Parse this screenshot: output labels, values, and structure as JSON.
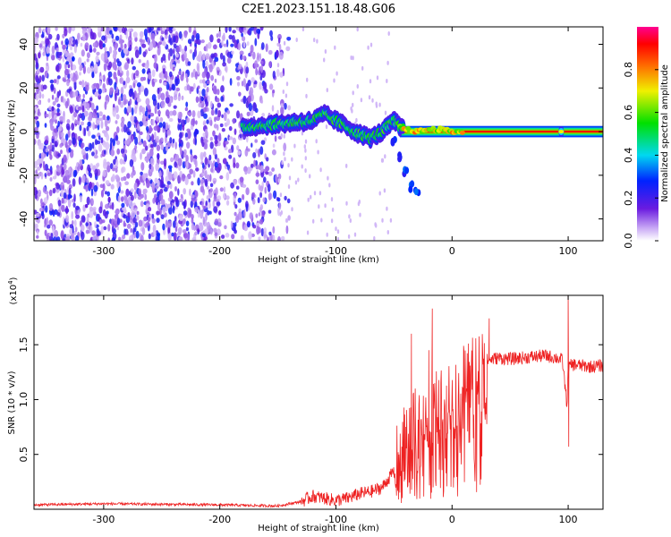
{
  "title": "C2E1.2023.151.18.48.G06",
  "colors": {
    "snr_line": "#ee2222",
    "spectrogram_scatter": "#7b2cf0",
    "spectrogram_track_core": "#e80000"
  },
  "colorbar": {
    "label": "Normalized spectral amplitude",
    "range": [
      0,
      1
    ],
    "ticks": [
      {
        "value": 0.0,
        "label": "0.0"
      },
      {
        "value": 0.2,
        "label": "0.2"
      },
      {
        "value": 0.4,
        "label": "0.4"
      },
      {
        "value": 0.6,
        "label": "0.6"
      },
      {
        "value": 0.8,
        "label": "0.8"
      }
    ],
    "colormap": "rainbow (white-violet-blue-cyan-green-yellow-red-magenta)"
  },
  "chart_data": [
    {
      "type": "heatmap",
      "title": "C2E1.2023.151.18.48.G06",
      "xlabel": "Height of straight line (km)",
      "ylabel": "Frequency (Hz)",
      "xlim": [
        -360,
        130
      ],
      "ylim": [
        -50,
        48
      ],
      "xticks": [
        -300,
        -200,
        -100,
        0,
        100
      ],
      "xtick_labels": [
        "-300",
        "-200",
        "-100",
        "0",
        "100"
      ],
      "yticks": [
        -40,
        -20,
        0,
        20,
        40
      ],
      "ytick_labels": [
        "-40",
        "-20",
        "0",
        "20",
        "40"
      ],
      "description_of_features": {
        "noise_region_x": [
          -360,
          -150
        ],
        "signal_track": [
          {
            "x": -180,
            "freq": 2
          },
          {
            "x": -160,
            "freq": 3
          },
          {
            "x": -140,
            "freq": 4
          },
          {
            "x": -120,
            "freq": 5
          },
          {
            "x": -110,
            "freq": 8
          },
          {
            "x": -100,
            "freq": 5
          },
          {
            "x": -90,
            "freq": 2
          },
          {
            "x": -80,
            "freq": -1
          },
          {
            "x": -70,
            "freq": -3
          },
          {
            "x": -60,
            "freq": 0
          },
          {
            "x": -50,
            "freq": 5
          },
          {
            "x": -45,
            "freq": 2
          },
          {
            "x": -40,
            "freq": 1
          },
          {
            "x": -30,
            "freq": 0
          },
          {
            "x": -20,
            "freq": 1
          },
          {
            "x": -10,
            "freq": 1
          },
          {
            "x": 0,
            "freq": 0
          },
          {
            "x": 50,
            "freq": 0
          },
          {
            "x": 94,
            "freq": 0
          },
          {
            "x": 130,
            "freq": 0
          }
        ],
        "branch_down": [
          {
            "x": -50,
            "freq": -5
          },
          {
            "x": -45,
            "freq": -12
          },
          {
            "x": -40,
            "freq": -18
          },
          {
            "x": -35,
            "freq": -25
          },
          {
            "x": -30,
            "freq": -28
          }
        ],
        "strong_band_x": [
          -45,
          130
        ]
      }
    },
    {
      "type": "line",
      "xlabel": "Height of straight line (km)",
      "ylabel": "SNR (10 * v/v)",
      "y_multiplier_label": "(x10^4)",
      "xlim": [
        -360,
        130
      ],
      "ylim": [
        0,
        1.95
      ],
      "xticks": [
        -300,
        -200,
        -100,
        0,
        100
      ],
      "xtick_labels": [
        "-300",
        "-200",
        "-100",
        "0",
        "100"
      ],
      "yticks": [
        0.5,
        1.0,
        1.5
      ],
      "ytick_labels": [
        "0.5",
        "1.0",
        "1.5"
      ],
      "series": [
        {
          "values_note": "noisy SNR profile (units x10^4)",
          "x": [
            -360,
            -300,
            -200,
            -150,
            -130,
            -120,
            -110,
            -100,
            -90,
            -80,
            -70,
            -60,
            -50,
            -45,
            -40,
            -35,
            -30,
            -25,
            -20,
            -15,
            -10,
            -5,
            0,
            10,
            20,
            30,
            40,
            50,
            60,
            70,
            80,
            90,
            95,
            99,
            100,
            105,
            110,
            120,
            130
          ],
          "y": [
            0.04,
            0.05,
            0.04,
            0.03,
            0.07,
            0.12,
            0.1,
            0.08,
            0.1,
            0.14,
            0.16,
            0.2,
            0.35,
            0.5,
            0.62,
            0.7,
            0.78,
            0.85,
            0.9,
            0.92,
            0.95,
            1.0,
            1.05,
            1.15,
            1.28,
            1.36,
            1.38,
            1.37,
            1.38,
            1.39,
            1.4,
            1.38,
            1.36,
            0.95,
            1.3,
            1.32,
            1.31,
            1.3,
            1.31
          ]
        }
      ],
      "spikes": [
        {
          "x": -35,
          "y": 1.6
        },
        {
          "x": -17,
          "y": 1.83
        },
        {
          "x": -20,
          "y": 1.45
        },
        {
          "x": 32,
          "y": 1.74
        },
        {
          "x": 100,
          "y": 1.95
        },
        {
          "x": 100.5,
          "y": 0.57
        }
      ]
    }
  ]
}
